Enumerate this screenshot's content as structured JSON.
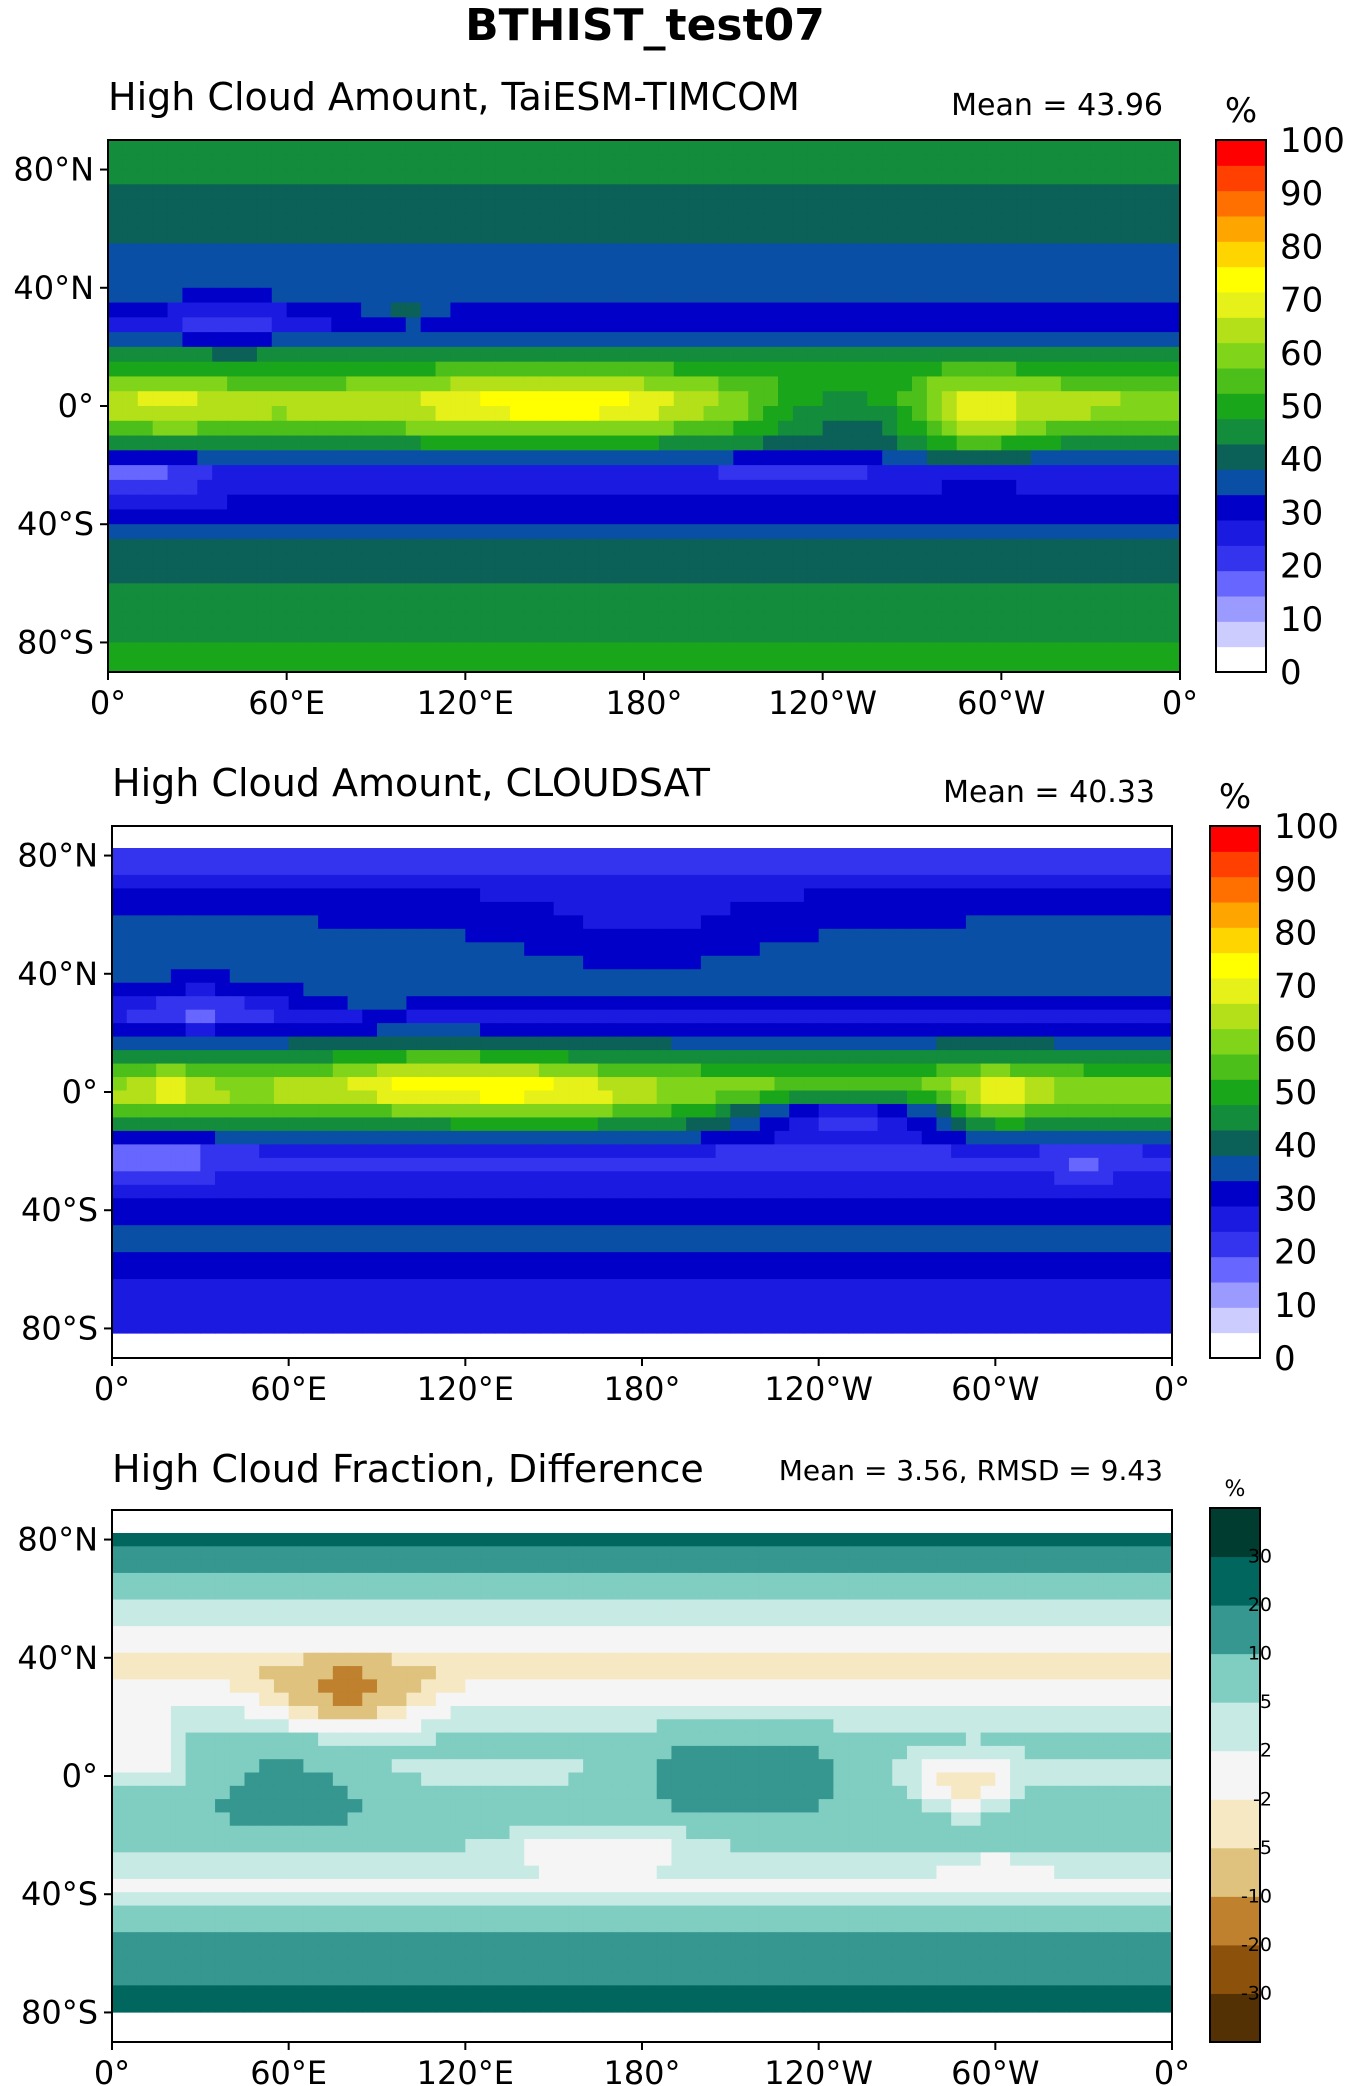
{
  "figure": {
    "title": "BTHIST_test07"
  },
  "chart_data": [
    {
      "type": "heatmap",
      "title": "High Cloud Amount, TaiESM-TIMCOM",
      "annotation": "Mean = 43.96",
      "colorbar": {
        "unit": "%",
        "levels": [
          0,
          5,
          10,
          15,
          20,
          25,
          30,
          35,
          40,
          45,
          50,
          55,
          60,
          65,
          70,
          75,
          80,
          85,
          90,
          95,
          100
        ],
        "tick_labels": [
          "0",
          "10",
          "20",
          "30",
          "40",
          "50",
          "60",
          "70",
          "80",
          "90",
          "100"
        ],
        "colors": [
          "#ffffff",
          "#ccccff",
          "#9a9aff",
          "#6767ff",
          "#3434ee",
          "#1a1ae0",
          "#0000c8",
          "#0a4fa6",
          "#0b6058",
          "#138c3c",
          "#1aa61a",
          "#4dbf1a",
          "#80d41a",
          "#b3e019",
          "#e6f019",
          "#ffff00",
          "#ffd500",
          "#ffa500",
          "#ff7000",
          "#ff4000",
          "#ff0000"
        ]
      },
      "xlabel": "",
      "ylabel": "",
      "x_ticks": [
        "0°",
        "60°E",
        "120°E",
        "180°",
        "120°W",
        "60°W",
        "0°"
      ],
      "y_ticks": [
        "80°N",
        "40°N",
        "0°",
        "40°S",
        "80°S"
      ],
      "xlim": [
        0,
        360
      ],
      "ylim": [
        -90,
        90
      ],
      "zonal_bands_percent": [
        {
          "lat": 85,
          "value": 48
        },
        {
          "lat": 70,
          "value": 42
        },
        {
          "lat": 55,
          "value": 40
        },
        {
          "lat": 40,
          "value": 38
        },
        {
          "lat": 28,
          "value": 30
        },
        {
          "lat": 15,
          "value": 50
        },
        {
          "lat": 0,
          "value": 68
        },
        {
          "lat": -10,
          "value": 55
        },
        {
          "lat": -22,
          "value": 28
        },
        {
          "lat": -35,
          "value": 32
        },
        {
          "lat": -50,
          "value": 42
        },
        {
          "lat": -62,
          "value": 46
        },
        {
          "lat": -72,
          "value": 48
        },
        {
          "lat": -85,
          "value": 52
        }
      ]
    },
    {
      "type": "heatmap",
      "title": "High Cloud Amount, CLOUDSAT",
      "annotation": "Mean = 40.33",
      "colorbar": {
        "unit": "%",
        "levels": [
          0,
          5,
          10,
          15,
          20,
          25,
          30,
          35,
          40,
          45,
          50,
          55,
          60,
          65,
          70,
          75,
          80,
          85,
          90,
          95,
          100
        ],
        "tick_labels": [
          "0",
          "10",
          "20",
          "30",
          "40",
          "50",
          "60",
          "70",
          "80",
          "90",
          "100"
        ],
        "colors": [
          "#ffffff",
          "#ccccff",
          "#9a9aff",
          "#6767ff",
          "#3434ee",
          "#1a1ae0",
          "#0000c8",
          "#0a4fa6",
          "#0b6058",
          "#138c3c",
          "#1aa61a",
          "#4dbf1a",
          "#80d41a",
          "#b3e019",
          "#e6f019",
          "#ffff00",
          "#ffd500",
          "#ffa500",
          "#ff7000",
          "#ff4000",
          "#ff0000"
        ]
      },
      "xlabel": "",
      "ylabel": "",
      "x_ticks": [
        "0°",
        "60°E",
        "120°E",
        "180°",
        "120°W",
        "60°W",
        "0°"
      ],
      "y_ticks": [
        "80°N",
        "40°N",
        "0°",
        "40°S",
        "80°S"
      ],
      "xlim": [
        0,
        360
      ],
      "ylim": [
        -90,
        90
      ],
      "zonal_bands_percent": [
        {
          "lat": 78,
          "value": 22
        },
        {
          "lat": 65,
          "value": 32
        },
        {
          "lat": 50,
          "value": 38
        },
        {
          "lat": 35,
          "value": 36
        },
        {
          "lat": 25,
          "value": 28
        },
        {
          "lat": 12,
          "value": 45
        },
        {
          "lat": 0,
          "value": 68
        },
        {
          "lat": -10,
          "value": 52
        },
        {
          "lat": -22,
          "value": 22
        },
        {
          "lat": -35,
          "value": 30
        },
        {
          "lat": -50,
          "value": 36
        },
        {
          "lat": -65,
          "value": 30
        },
        {
          "lat": -78,
          "value": 25
        }
      ]
    },
    {
      "type": "heatmap",
      "title": "High Cloud Fraction, Difference",
      "annotation": "Mean = 3.56, RMSD = 9.43",
      "colorbar": {
        "unit": "%",
        "levels": [
          -40,
          -30,
          -20,
          -10,
          -5,
          -2,
          2,
          5,
          10,
          20,
          30,
          40
        ],
        "tick_labels": [
          "-30",
          "-20",
          "-10",
          "-5",
          "-2",
          "2",
          "5",
          "10",
          "20",
          "30"
        ],
        "colors": [
          "#543005",
          "#8c510a",
          "#bf812d",
          "#dfc27d",
          "#f6e8c3",
          "#f5f5f5",
          "#c7eae5",
          "#80cdc1",
          "#35978f",
          "#01665e",
          "#003c30"
        ]
      },
      "xlabel": "",
      "ylabel": "",
      "x_ticks": [
        "0°",
        "60°E",
        "120°E",
        "180°",
        "120°W",
        "60°W",
        "0°"
      ],
      "y_ticks": [
        "80°N",
        "40°N",
        "0°",
        "40°S",
        "80°S"
      ],
      "xlim": [
        0,
        360
      ],
      "ylim": [
        -90,
        90
      ],
      "zonal_bands_percent": [
        {
          "lat": 78,
          "value": 22
        },
        {
          "lat": 65,
          "value": 8
        },
        {
          "lat": 50,
          "value": 2
        },
        {
          "lat": 35,
          "value": -4
        },
        {
          "lat": 22,
          "value": 3
        },
        {
          "lat": 10,
          "value": 6
        },
        {
          "lat": 0,
          "value": 4
        },
        {
          "lat": -12,
          "value": 8
        },
        {
          "lat": -25,
          "value": 6
        },
        {
          "lat": -38,
          "value": 1
        },
        {
          "lat": -52,
          "value": 8
        },
        {
          "lat": -65,
          "value": 16
        },
        {
          "lat": -78,
          "value": 22
        }
      ]
    }
  ]
}
